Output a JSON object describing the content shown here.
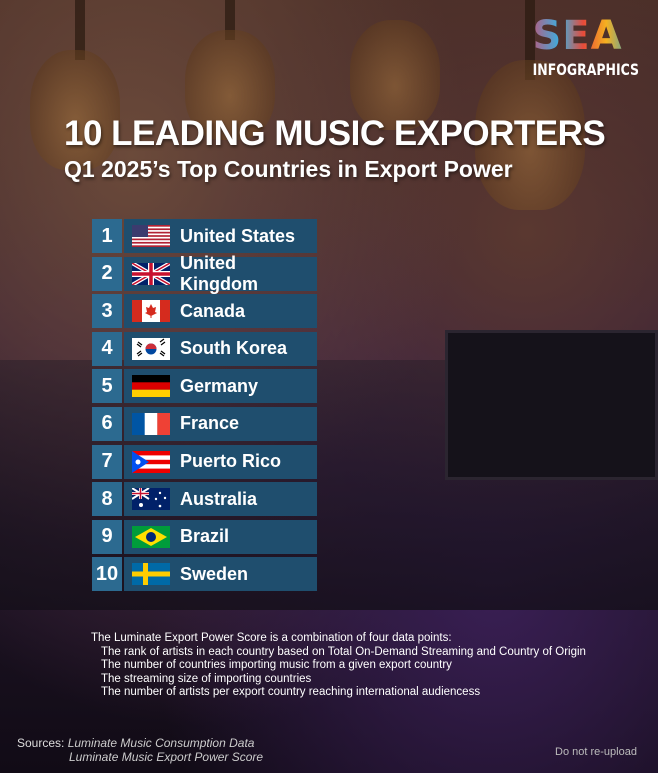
{
  "logo": {
    "text_top": "SEA",
    "text_bottom": "INFOGRAPHICS"
  },
  "title": "10 LEADING MUSIC EXPORTERS",
  "subtitle": "Q1 2025’s Top Countries in Export Power",
  "ranking": [
    {
      "rank": "1",
      "country": "United States",
      "flag": "us"
    },
    {
      "rank": "2",
      "country": "United Kingdom",
      "flag": "gb"
    },
    {
      "rank": "3",
      "country": "Canada",
      "flag": "ca"
    },
    {
      "rank": "4",
      "country": "South Korea",
      "flag": "kr"
    },
    {
      "rank": "5",
      "country": "Germany",
      "flag": "de"
    },
    {
      "rank": "6",
      "country": "France",
      "flag": "fr"
    },
    {
      "rank": "7",
      "country": "Puerto Rico",
      "flag": "pr"
    },
    {
      "rank": "8",
      "country": "Australia",
      "flag": "au"
    },
    {
      "rank": "9",
      "country": "Brazil",
      "flag": "br"
    },
    {
      "rank": "10",
      "country": "Sweden",
      "flag": "se"
    }
  ],
  "notes": {
    "intro": "The Luminate Export Power Score is a combination of four data points:",
    "points": [
      "The rank of artists in each country based on Total On-Demand Streaming and Country of Origin",
      "The number of countries importing music from a given export country",
      "The streaming size of importing countries",
      "The number of artists per export country reaching international audiencess"
    ]
  },
  "sources": {
    "label": "Sources:",
    "items": [
      "Luminate Music Consumption Data",
      "Luminate Music Export Power Score"
    ]
  },
  "watermark": "Do not re-upload",
  "colors": {
    "rank_box": "#2c6a90",
    "name_box": "#1f4e6e"
  }
}
